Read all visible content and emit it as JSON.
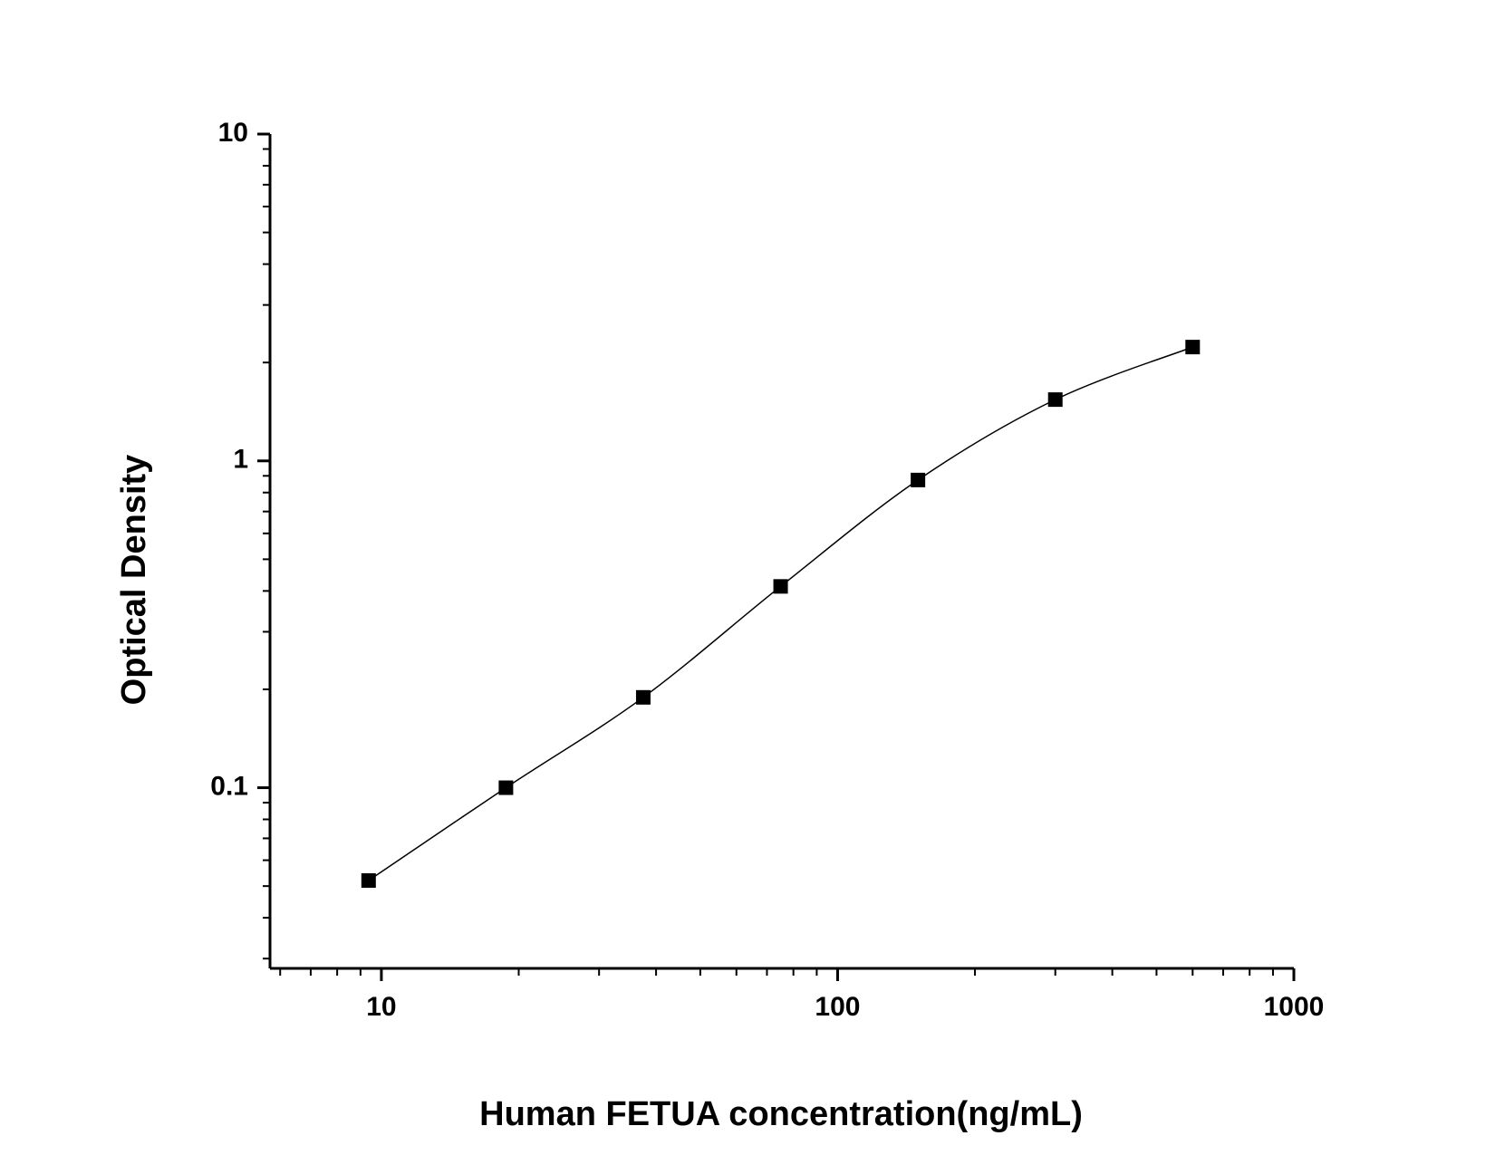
{
  "chart_data": {
    "type": "scatter",
    "x_label": "Human FETUA concentration(ng/mL)",
    "y_label": "Optical Density",
    "x_log": true,
    "y_log": true,
    "xlim": [
      5.7,
      1000
    ],
    "ylim": [
      0.028,
      10
    ],
    "xticks": [
      10,
      100,
      1000
    ],
    "yticks": [
      0.1,
      1,
      10
    ],
    "x_minor_ticks": [
      6,
      7,
      8,
      9,
      20,
      30,
      40,
      50,
      60,
      70,
      80,
      90,
      200,
      300,
      400,
      500,
      600,
      700,
      800,
      900
    ],
    "y_minor_ticks": [
      0.03,
      0.04,
      0.05,
      0.06,
      0.07,
      0.08,
      0.09,
      0.2,
      0.3,
      0.4,
      0.5,
      0.6,
      0.7,
      0.8,
      0.9,
      2,
      3,
      4,
      5,
      6,
      7,
      8,
      9
    ],
    "fit_curve": true,
    "series": [
      {
        "color": "#000000",
        "x": [
          9.375,
          18.75,
          37.5,
          75,
          150,
          300,
          600
        ],
        "values": [
          0.052,
          0.1,
          0.189,
          0.413,
          0.874,
          1.54,
          2.23
        ]
      }
    ]
  }
}
